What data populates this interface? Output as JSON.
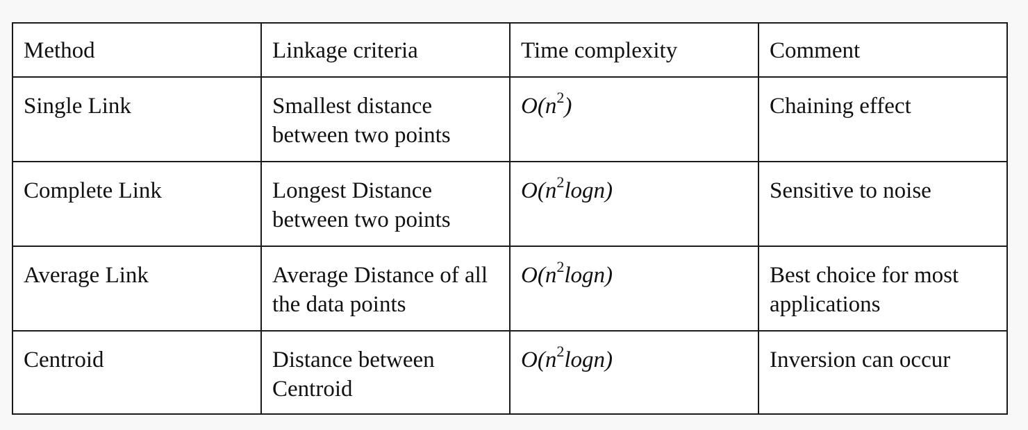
{
  "table": {
    "headers": [
      "Method",
      "Linkage criteria",
      "Time complexity",
      "Comment"
    ],
    "rows": [
      {
        "method": "Single Link",
        "linkage": "Smallest distance between two points",
        "complexity": {
          "prefix": "O(n",
          "exponent": "2",
          "suffix": ")"
        },
        "comment": "Chaining effect"
      },
      {
        "method": "Complete Link",
        "linkage": "Longest Distance between two points",
        "complexity": {
          "prefix": "O(n",
          "exponent": "2",
          "suffix": "logn)"
        },
        "comment": "Sensitive to noise"
      },
      {
        "method": "Average Link",
        "linkage": "Average Distance of all the data points",
        "complexity": {
          "prefix": "O(n",
          "exponent": "2",
          "suffix": "logn)"
        },
        "comment": "Best choice for most applications"
      },
      {
        "method": "Centroid",
        "linkage": "Distance between Centroid",
        "complexity": {
          "prefix": "O(n",
          "exponent": "2",
          "suffix": "logn)"
        },
        "comment": "Inversion can occur"
      }
    ]
  }
}
